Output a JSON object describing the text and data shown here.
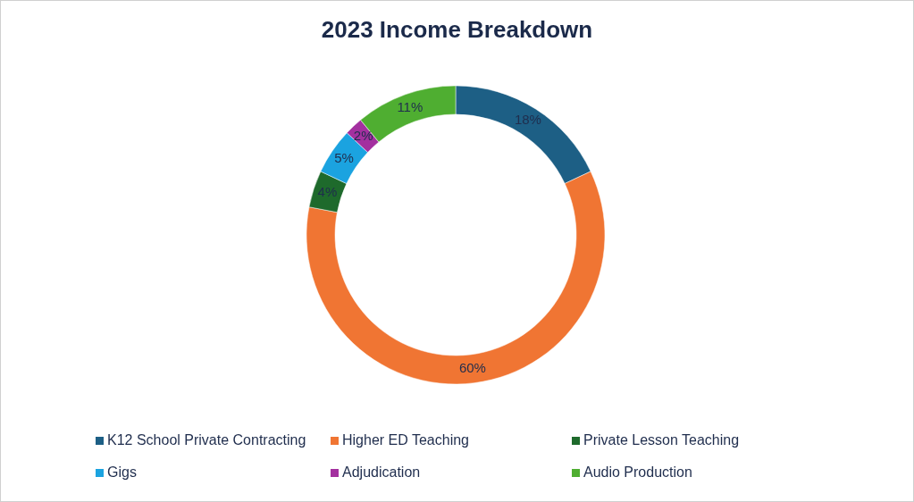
{
  "chart_data": {
    "type": "donut",
    "title": "2023 Income Breakdown",
    "categories": [
      "K12 School Private Contracting",
      "Higher ED Teaching",
      "Private Lesson Teaching",
      "Gigs",
      "Adjudication",
      "Audio Production"
    ],
    "values": [
      18,
      60,
      4,
      5,
      2,
      11
    ],
    "colors": [
      "#1d5f85",
      "#f07533",
      "#1e6a2c",
      "#1ba3e0",
      "#a3309f",
      "#4fae31"
    ],
    "value_labels": [
      "18%",
      "60%",
      "4%",
      "5%",
      "2%",
      "11%"
    ],
    "legend": "bottom"
  }
}
